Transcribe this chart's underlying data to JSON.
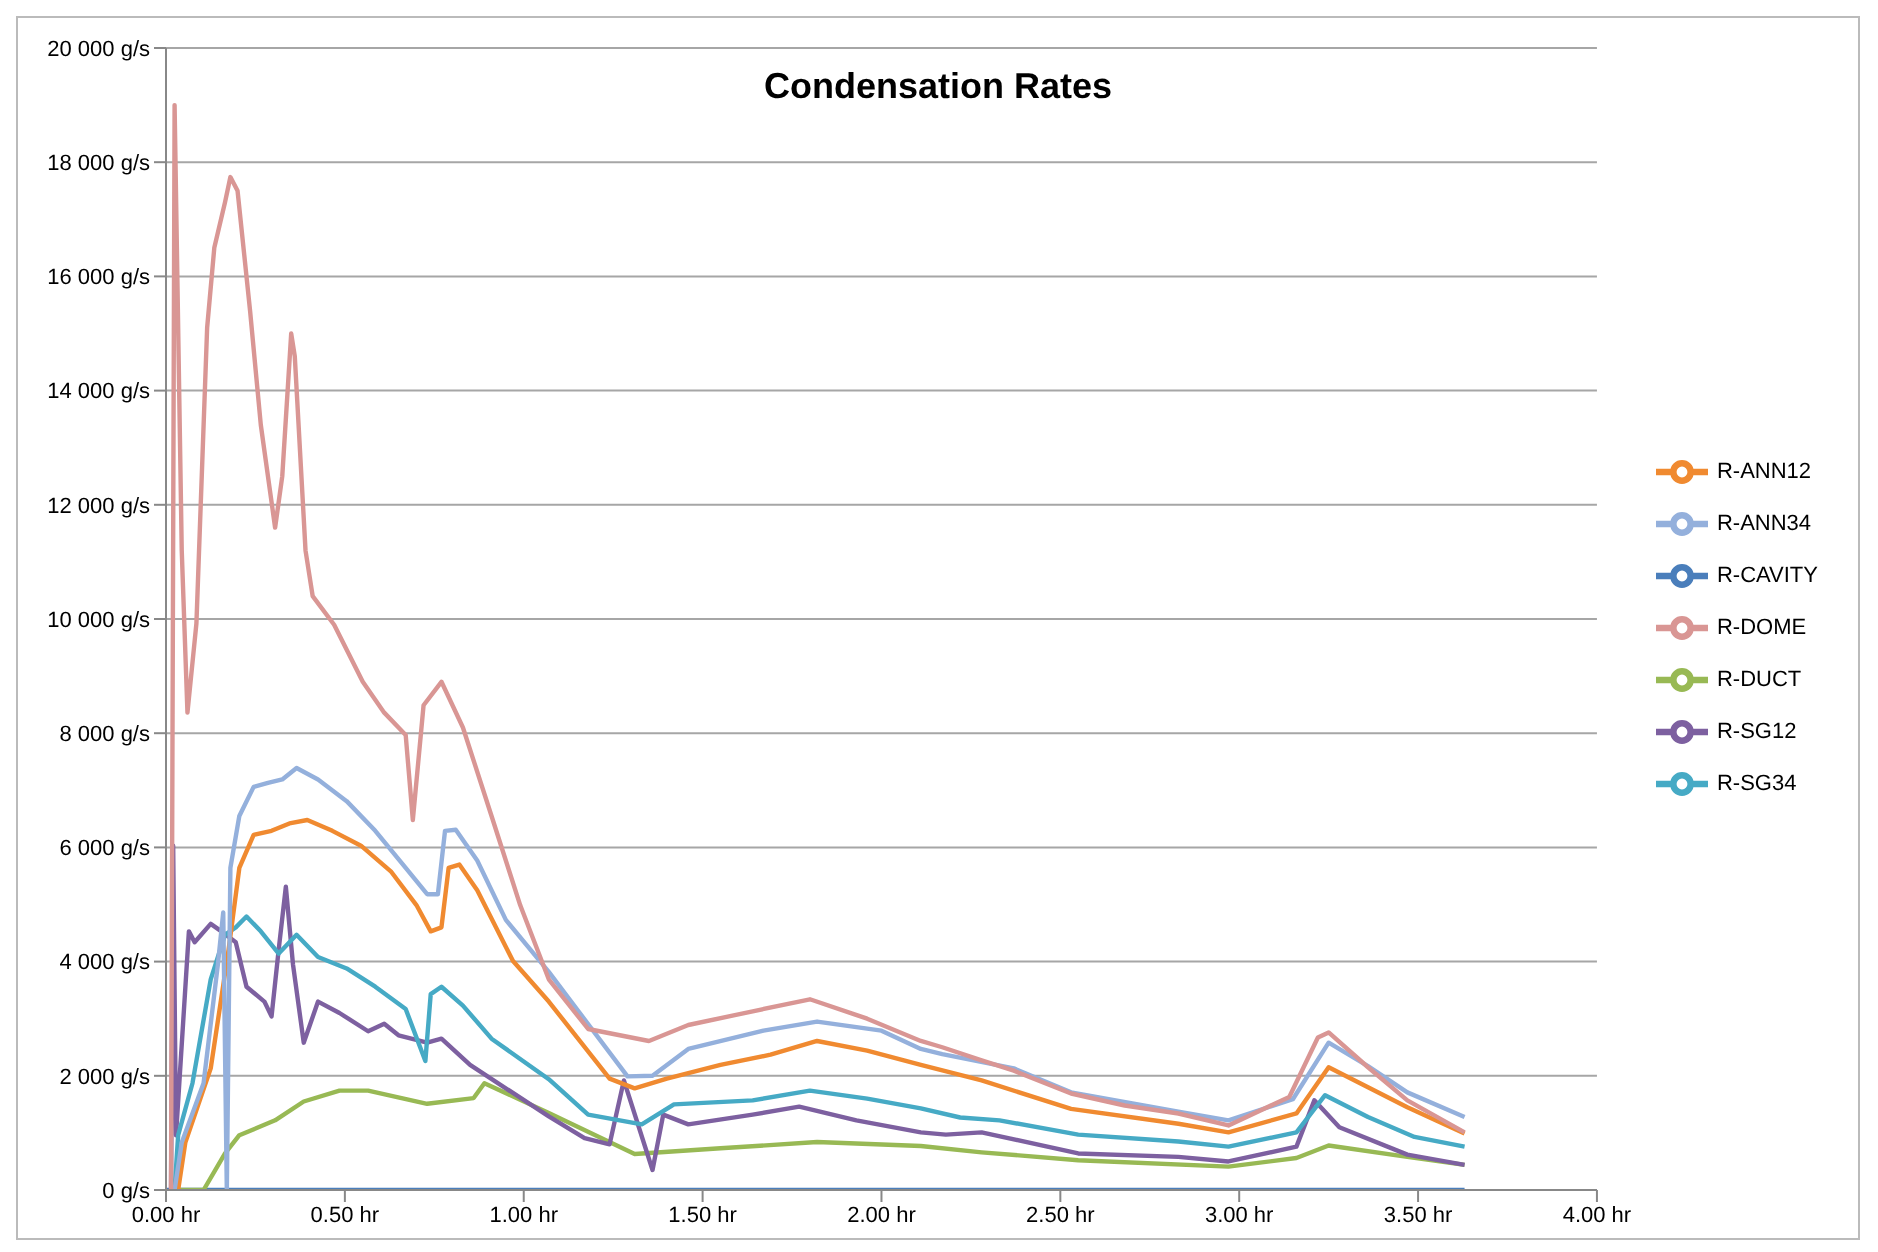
{
  "chart_data": {
    "type": "line",
    "title": "Condensation Rates",
    "xlim": [
      0,
      4
    ],
    "xticks": [
      {
        "value": 0,
        "label": "0.00 hr"
      },
      {
        "value": 0.5,
        "label": "0.50 hr"
      },
      {
        "value": 1,
        "label": "1.00 hr"
      },
      {
        "value": 1.5,
        "label": "1.50 hr"
      },
      {
        "value": 2,
        "label": "2.00 hr"
      },
      {
        "value": 2.5,
        "label": "2.50 hr"
      },
      {
        "value": 3,
        "label": "3.00 hr"
      },
      {
        "value": 3.5,
        "label": "3.50 hr"
      },
      {
        "value": 4,
        "label": "4.00 hr"
      }
    ],
    "ylim": [
      0,
      20000
    ],
    "yticks": [
      {
        "value": 0,
        "label": "0 g/s"
      },
      {
        "value": 2000,
        "label": "2 000 g/s"
      },
      {
        "value": 4000,
        "label": "4 000 g/s"
      },
      {
        "value": 6000,
        "label": "6 000 g/s"
      },
      {
        "value": 8000,
        "label": "8 000 g/s"
      },
      {
        "value": 10000,
        "label": "10 000 g/s"
      },
      {
        "value": 12000,
        "label": "12 000 g/s"
      },
      {
        "value": 14000,
        "label": "14 000 g/s"
      },
      {
        "value": 16000,
        "label": "16 000 g/s"
      },
      {
        "value": 18000,
        "label": "18 000 g/s"
      },
      {
        "value": 20000,
        "label": "20 000 g/s"
      }
    ],
    "grid": "y",
    "legend": "right",
    "marker": "none",
    "line_style": "solid",
    "series": [
      {
        "name": "R-CAVITY",
        "color": "#4a7ebb",
        "x": [
          0,
          3.63
        ],
        "values": [
          0,
          0
        ]
      },
      {
        "name": "R-DUCT",
        "color": "#98b954",
        "x": [
          0.024,
          0.105,
          0.165,
          0.205,
          0.305,
          0.385,
          0.485,
          0.565,
          0.73,
          0.86,
          0.89,
          1.07,
          1.31,
          1.55,
          1.82,
          2.11,
          2.28,
          2.55,
          2.97,
          3.16,
          3.25,
          3.47,
          3.63
        ],
        "values": [
          0,
          0,
          640,
          960,
          1220,
          1550,
          1740,
          1740,
          1510,
          1610,
          1870,
          1350,
          630,
          730,
          840,
          770,
          660,
          520,
          410,
          560,
          780,
          580,
          440
        ]
      },
      {
        "name": "R-SG12",
        "color": "#7d60a0",
        "x": [
          0.014,
          0.02,
          0.028,
          0.064,
          0.08,
          0.125,
          0.155,
          0.195,
          0.225,
          0.275,
          0.295,
          0.315,
          0.335,
          0.355,
          0.385,
          0.425,
          0.485,
          0.565,
          0.61,
          0.65,
          0.73,
          0.77,
          0.85,
          1.07,
          1.17,
          1.24,
          1.28,
          1.36,
          1.39,
          1.46,
          1.64,
          1.77,
          1.93,
          2.11,
          2.18,
          2.28,
          2.55,
          2.83,
          2.97,
          3.16,
          3.21,
          3.28,
          3.47,
          3.63
        ],
        "values": [
          0,
          6030,
          960,
          4530,
          4340,
          4660,
          4530,
          4340,
          3560,
          3300,
          3040,
          4210,
          5310,
          3950,
          2580,
          3300,
          3100,
          2780,
          2910,
          2710,
          2580,
          2650,
          2190,
          1290,
          910,
          800,
          1920,
          350,
          1320,
          1150,
          1320,
          1460,
          1220,
          1010,
          970,
          1010,
          640,
          580,
          500,
          760,
          1570,
          1100,
          620,
          440
        ]
      },
      {
        "name": "R-SG34",
        "color": "#46aac5",
        "x": [
          0.024,
          0.034,
          0.074,
          0.125,
          0.165,
          0.195,
          0.225,
          0.265,
          0.315,
          0.365,
          0.425,
          0.505,
          0.585,
          0.67,
          0.725,
          0.74,
          0.77,
          0.83,
          0.91,
          1.07,
          1.18,
          1.33,
          1.42,
          1.64,
          1.8,
          1.96,
          2.11,
          2.22,
          2.33,
          2.55,
          2.83,
          2.97,
          3.16,
          3.24,
          3.36,
          3.49,
          3.63
        ],
        "values": [
          0,
          960,
          1870,
          3690,
          4470,
          4600,
          4790,
          4530,
          4140,
          4470,
          4080,
          3880,
          3560,
          3170,
          2260,
          3430,
          3560,
          3230,
          2650,
          1940,
          1320,
          1150,
          1500,
          1570,
          1740,
          1600,
          1430,
          1270,
          1220,
          970,
          850,
          760,
          1010,
          1660,
          1280,
          930,
          760
        ]
      },
      {
        "name": "R-ANN12",
        "color": "#f08a30",
        "x": [
          0.034,
          0.054,
          0.125,
          0.175,
          0.205,
          0.245,
          0.295,
          0.345,
          0.395,
          0.465,
          0.545,
          0.63,
          0.7,
          0.74,
          0.77,
          0.79,
          0.82,
          0.87,
          0.97,
          1.07,
          1.24,
          1.31,
          1.4,
          1.55,
          1.69,
          1.82,
          1.96,
          2.11,
          2.28,
          2.53,
          2.83,
          2.97,
          3.16,
          3.25,
          3.36,
          3.47,
          3.63
        ],
        "values": [
          0,
          830,
          2130,
          4210,
          5640,
          6220,
          6290,
          6420,
          6480,
          6290,
          6030,
          5570,
          4990,
          4530,
          4600,
          5640,
          5700,
          5250,
          4010,
          3300,
          1950,
          1780,
          1950,
          2190,
          2370,
          2610,
          2440,
          2190,
          1920,
          1420,
          1160,
          1010,
          1340,
          2150,
          1800,
          1450,
          990
        ]
      },
      {
        "name": "R-ANN34",
        "color": "#94b0dc",
        "x": [
          0.024,
          0.044,
          0.105,
          0.145,
          0.16,
          0.17,
          0.18,
          0.205,
          0.245,
          0.285,
          0.325,
          0.365,
          0.425,
          0.505,
          0.585,
          0.67,
          0.73,
          0.76,
          0.78,
          0.81,
          0.87,
          0.95,
          1.07,
          1.29,
          1.36,
          1.46,
          1.67,
          1.82,
          2.0,
          2.11,
          2.17,
          2.37,
          2.53,
          2.83,
          2.97,
          3.15,
          3.25,
          3.36,
          3.47,
          3.63
        ],
        "values": [
          0,
          830,
          1870,
          3950,
          4860,
          0,
          5640,
          6550,
          7060,
          7130,
          7190,
          7390,
          7190,
          6810,
          6290,
          5640,
          5180,
          5180,
          6290,
          6310,
          5770,
          4730,
          3820,
          1990,
          2000,
          2470,
          2790,
          2950,
          2790,
          2470,
          2380,
          2130,
          1710,
          1370,
          1220,
          1590,
          2580,
          2170,
          1710,
          1280
        ]
      },
      {
        "name": "R-DOME",
        "color": "#d99694",
        "x": [
          0.014,
          0.024,
          0.044,
          0.06,
          0.085,
          0.115,
          0.135,
          0.165,
          0.18,
          0.2,
          0.235,
          0.265,
          0.305,
          0.325,
          0.35,
          0.36,
          0.39,
          0.41,
          0.47,
          0.55,
          0.61,
          0.67,
          0.69,
          0.72,
          0.77,
          0.83,
          0.91,
          0.99,
          1.07,
          1.18,
          1.35,
          1.46,
          1.64,
          1.8,
          1.96,
          2.11,
          2.17,
          2.28,
          2.37,
          2.53,
          2.68,
          2.83,
          2.97,
          3.14,
          3.22,
          3.25,
          3.36,
          3.47,
          3.63
        ],
        "values": [
          0,
          19000,
          11200,
          8360,
          9920,
          15100,
          16500,
          17300,
          17740,
          17500,
          15400,
          13400,
          11600,
          12500,
          15000,
          14600,
          11200,
          10400,
          9900,
          8900,
          8360,
          7970,
          6480,
          8490,
          8900,
          8100,
          6550,
          4990,
          3690,
          2820,
          2610,
          2890,
          3130,
          3340,
          3000,
          2610,
          2500,
          2270,
          2090,
          1690,
          1480,
          1340,
          1130,
          1630,
          2670,
          2760,
          2150,
          1570,
          1010
        ]
      }
    ]
  }
}
